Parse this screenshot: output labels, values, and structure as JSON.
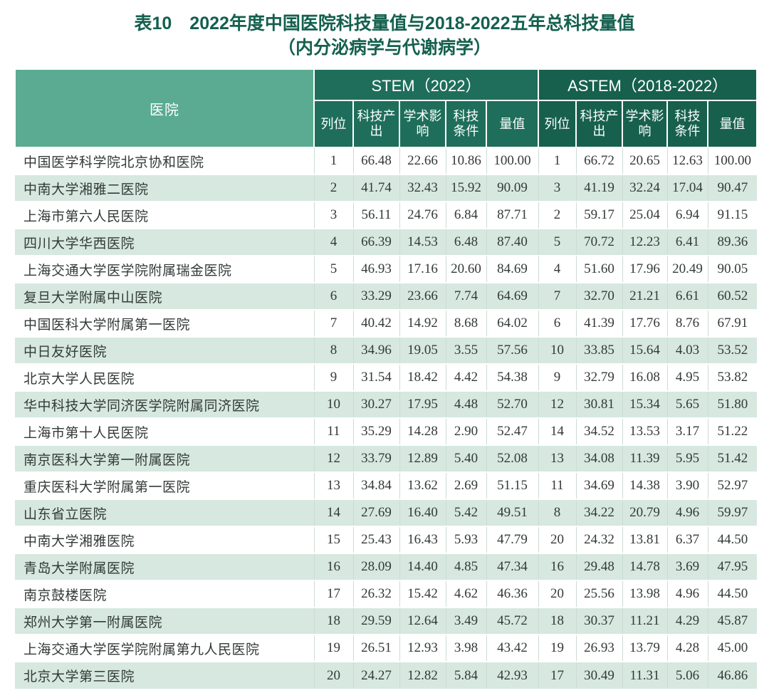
{
  "page": {
    "title_line1": "表10　2022年度中国医院科技量值与2018-2022五年总科技量值",
    "title_line2": "（内分泌病学与代谢病学）"
  },
  "table": {
    "hospital_header": "医院",
    "groups": {
      "stem": "STEM（2022）",
      "astem": "ASTEM（2018-2022）"
    },
    "sub_headers": [
      "列位",
      "科技产出",
      "学术影响",
      "科技条件",
      "量值"
    ],
    "rows": [
      {
        "name": "中国医学科学院北京协和医院",
        "stem": [
          "1",
          "66.48",
          "22.66",
          "10.86",
          "100.00"
        ],
        "astem": [
          "1",
          "66.72",
          "20.65",
          "12.63",
          "100.00"
        ]
      },
      {
        "name": "中南大学湘雅二医院",
        "stem": [
          "2",
          "41.74",
          "32.43",
          "15.92",
          "90.09"
        ],
        "astem": [
          "3",
          "41.19",
          "32.24",
          "17.04",
          "90.47"
        ]
      },
      {
        "name": "上海市第六人民医院",
        "stem": [
          "3",
          "56.11",
          "24.76",
          "6.84",
          "87.71"
        ],
        "astem": [
          "2",
          "59.17",
          "25.04",
          "6.94",
          "91.15"
        ]
      },
      {
        "name": "四川大学华西医院",
        "stem": [
          "4",
          "66.39",
          "14.53",
          "6.48",
          "87.40"
        ],
        "astem": [
          "5",
          "70.72",
          "12.23",
          "6.41",
          "89.36"
        ]
      },
      {
        "name": "上海交通大学医学院附属瑞金医院",
        "stem": [
          "5",
          "46.93",
          "17.16",
          "20.60",
          "84.69"
        ],
        "astem": [
          "4",
          "51.60",
          "17.96",
          "20.49",
          "90.05"
        ]
      },
      {
        "name": "复旦大学附属中山医院",
        "stem": [
          "6",
          "33.29",
          "23.66",
          "7.74",
          "64.69"
        ],
        "astem": [
          "7",
          "32.70",
          "21.21",
          "6.61",
          "60.52"
        ]
      },
      {
        "name": "中国医科大学附属第一医院",
        "stem": [
          "7",
          "40.42",
          "14.92",
          "8.68",
          "64.02"
        ],
        "astem": [
          "6",
          "41.39",
          "17.76",
          "8.76",
          "67.91"
        ]
      },
      {
        "name": "中日友好医院",
        "stem": [
          "8",
          "34.96",
          "19.05",
          "3.55",
          "57.56"
        ],
        "astem": [
          "10",
          "33.85",
          "15.64",
          "4.03",
          "53.52"
        ]
      },
      {
        "name": "北京大学人民医院",
        "stem": [
          "9",
          "31.54",
          "18.42",
          "4.42",
          "54.38"
        ],
        "astem": [
          "9",
          "32.79",
          "16.08",
          "4.95",
          "53.82"
        ]
      },
      {
        "name": "华中科技大学同济医学院附属同济医院",
        "stem": [
          "10",
          "30.27",
          "17.95",
          "4.48",
          "52.70"
        ],
        "astem": [
          "12",
          "30.81",
          "15.34",
          "5.65",
          "51.80"
        ]
      },
      {
        "name": "上海市第十人民医院",
        "stem": [
          "11",
          "35.29",
          "14.28",
          "2.90",
          "52.47"
        ],
        "astem": [
          "14",
          "34.52",
          "13.53",
          "3.17",
          "51.22"
        ]
      },
      {
        "name": "南京医科大学第一附属医院",
        "stem": [
          "12",
          "33.79",
          "12.89",
          "5.40",
          "52.08"
        ],
        "astem": [
          "13",
          "34.08",
          "11.39",
          "5.95",
          "51.42"
        ]
      },
      {
        "name": "重庆医科大学附属第一医院",
        "stem": [
          "13",
          "34.84",
          "13.62",
          "2.69",
          "51.15"
        ],
        "astem": [
          "11",
          "34.69",
          "14.38",
          "3.90",
          "52.97"
        ]
      },
      {
        "name": "山东省立医院",
        "stem": [
          "14",
          "27.69",
          "16.40",
          "5.42",
          "49.51"
        ],
        "astem": [
          "8",
          "34.22",
          "20.79",
          "4.96",
          "59.97"
        ]
      },
      {
        "name": "中南大学湘雅医院",
        "stem": [
          "15",
          "25.43",
          "16.43",
          "5.93",
          "47.79"
        ],
        "astem": [
          "20",
          "24.32",
          "13.81",
          "6.37",
          "44.50"
        ]
      },
      {
        "name": "青岛大学附属医院",
        "stem": [
          "16",
          "28.09",
          "14.40",
          "4.85",
          "47.34"
        ],
        "astem": [
          "16",
          "29.48",
          "14.78",
          "3.69",
          "47.95"
        ]
      },
      {
        "name": "南京鼓楼医院",
        "stem": [
          "17",
          "26.32",
          "15.42",
          "4.62",
          "46.36"
        ],
        "astem": [
          "20",
          "25.56",
          "13.98",
          "4.96",
          "44.50"
        ]
      },
      {
        "name": "郑州大学第一附属医院",
        "stem": [
          "18",
          "29.59",
          "12.64",
          "3.49",
          "45.72"
        ],
        "astem": [
          "18",
          "30.37",
          "11.21",
          "4.29",
          "45.87"
        ]
      },
      {
        "name": "上海交通大学医学院附属第九人民医院",
        "stem": [
          "19",
          "26.51",
          "12.93",
          "3.98",
          "43.42"
        ],
        "astem": [
          "19",
          "26.93",
          "13.79",
          "4.28",
          "45.00"
        ]
      },
      {
        "name": "北京大学第三医院",
        "stem": [
          "20",
          "24.27",
          "12.82",
          "5.84",
          "42.93"
        ],
        "astem": [
          "17",
          "30.49",
          "11.31",
          "5.06",
          "46.86"
        ]
      }
    ]
  },
  "colors": {
    "title_green": "#14604e",
    "hospital_header_bg": "#5aab91",
    "stem_header_bg": "#1e6e5b",
    "astem_header_bg": "#17604e",
    "row_stripe": "#d6e8e0",
    "body_text": "#333a38"
  }
}
